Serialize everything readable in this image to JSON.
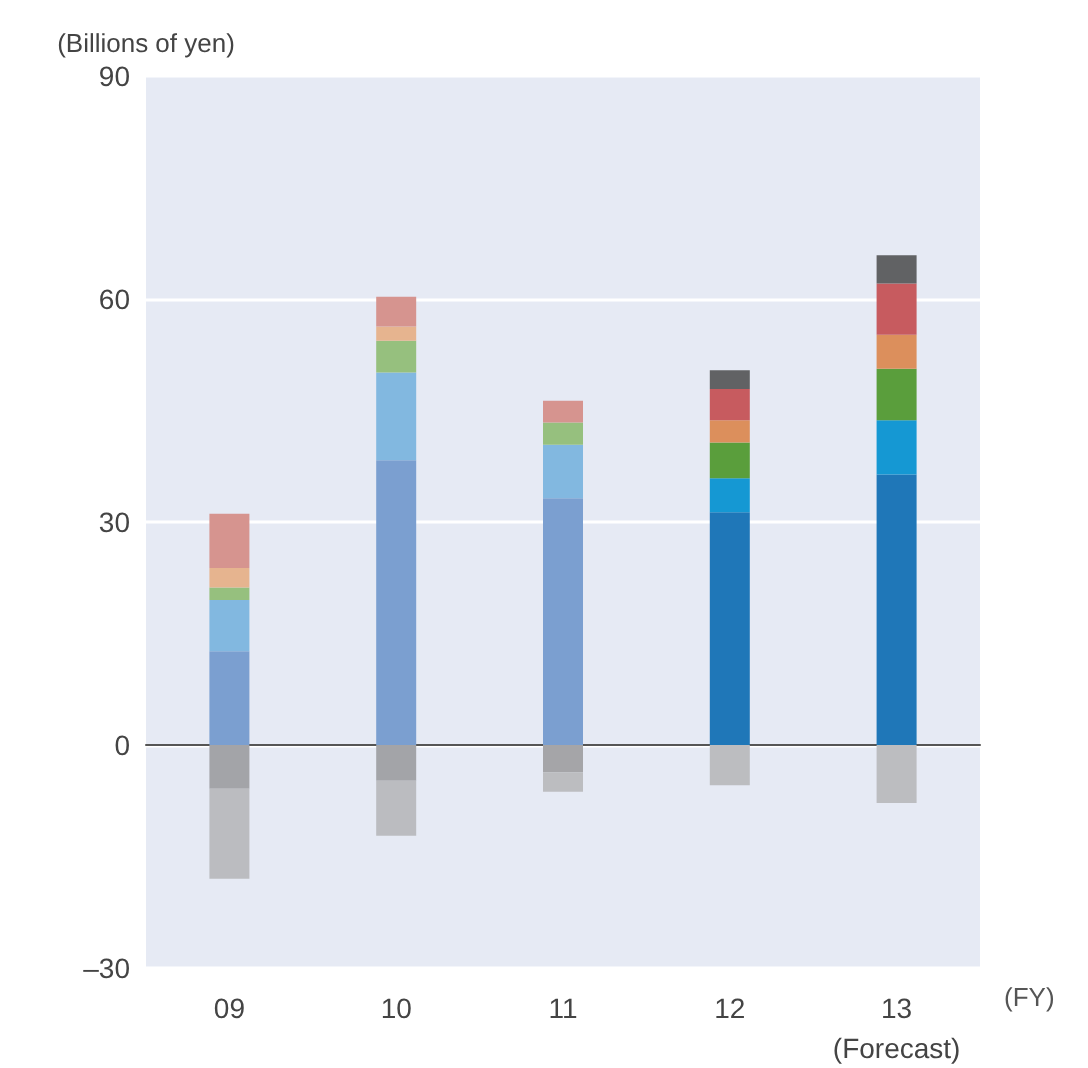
{
  "chart_data": {
    "type": "bar",
    "stacked": true,
    "ylabel": "(Billions of yen)",
    "xlabel": "(FY)",
    "categories": [
      "09",
      "10",
      "11",
      "12",
      "13\n(Forecast)"
    ],
    "series": [
      {
        "values": [
          12.6,
          38.3,
          33.2,
          31.3,
          36.4
        ],
        "colors": [
          "#7b9fd0",
          "#7b9fd0",
          "#7b9fd0",
          "#1f77b8",
          "#1f77b8"
        ]
      },
      {
        "values": [
          6.9,
          11.8,
          7.2,
          4.6,
          7.3
        ],
        "colors": [
          "#82b8e0",
          "#82b8e0",
          "#82b8e0",
          "#1598d3",
          "#1598d3"
        ]
      },
      {
        "values": [
          1.7,
          4.3,
          3.0,
          4.8,
          6.9
        ],
        "colors": [
          "#96c07e",
          "#96c07e",
          "#96c07e",
          "#5a9e3c",
          "#5a9e3c"
        ]
      },
      {
        "values": [
          2.6,
          1.9,
          null,
          3.0,
          4.6
        ],
        "colors": [
          "#e6b48f",
          "#e6b48f",
          "#e6b48f",
          "#dc8f5c",
          "#dc8f5c"
        ]
      },
      {
        "values": [
          7.3,
          4.0,
          2.9,
          4.2,
          6.9
        ],
        "colors": [
          "#d6948f",
          "#d6948f",
          "#d6948f",
          "#c75b5f",
          "#c75b5f"
        ]
      },
      {
        "values": [
          null,
          null,
          null,
          2.5,
          3.8
        ],
        "colors": [
          "#616264",
          "#616264",
          "#616264",
          "#616264",
          "#616264"
        ]
      },
      {
        "values": [
          -5.9,
          -4.8,
          -3.7,
          null,
          null
        ],
        "colors": [
          "#a3a4a8",
          "#a3a4a8",
          "#a5a5a8",
          "#a3a4a8",
          "#a3a4a8"
        ]
      },
      {
        "values": [
          -12.1,
          -7.4,
          -2.6,
          -5.4,
          -7.8
        ],
        "colors": [
          "#bbbcc0",
          "#bbbcc0",
          "#bcbdc0",
          "#bcbdc0",
          "#bcbdc0"
        ]
      }
    ],
    "ylim": [
      -30,
      90
    ],
    "yticks": [
      {
        "value": -30,
        "label": "–30"
      },
      0,
      30,
      60,
      90
    ],
    "grid": "y"
  }
}
